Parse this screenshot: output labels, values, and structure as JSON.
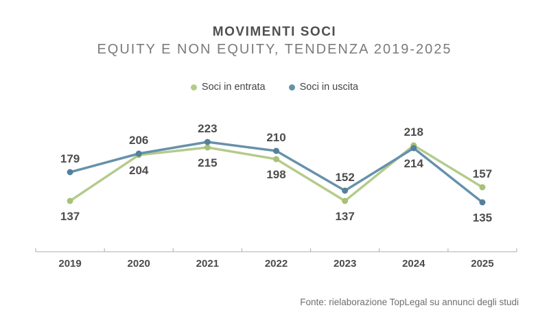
{
  "header": {
    "title": "MOVIMENTI SOCI",
    "subtitle": "EQUITY E NON EQUITY, TENDENZA 2019-2025"
  },
  "legend": {
    "items": [
      {
        "label": "Soci in entrata",
        "color": "#b4cb8b"
      },
      {
        "label": "Soci in uscita",
        "color": "#6691ab"
      }
    ]
  },
  "chart_data": {
    "type": "line",
    "title": "MOVIMENTI SOCI",
    "subtitle": "EQUITY E NON EQUITY, TENDENZA 2019-2025",
    "categories": [
      "2019",
      "2020",
      "2021",
      "2022",
      "2023",
      "2024",
      "2025"
    ],
    "series": [
      {
        "name": "Soci in entrata",
        "values": [
          137,
          204,
          215,
          198,
          137,
          218,
          157
        ],
        "color": "#b4cb8b",
        "marker_color": "#a6c178"
      },
      {
        "name": "Soci in uscita",
        "values": [
          179,
          206,
          223,
          210,
          152,
          214,
          135
        ],
        "color": "#6691ab",
        "marker_color": "#54809c"
      }
    ],
    "xlabel": "",
    "ylabel": "",
    "ylim": [
      120,
      240
    ],
    "grid": false,
    "data_labels": true,
    "legend_position": "top",
    "axis_color": "#ababab",
    "value_label_color": "#4c4c4c",
    "tick_label_color": "#4a4a4a"
  },
  "footer": {
    "source": "Fonte: rielaborazione TopLegal su annunci degli studi"
  }
}
